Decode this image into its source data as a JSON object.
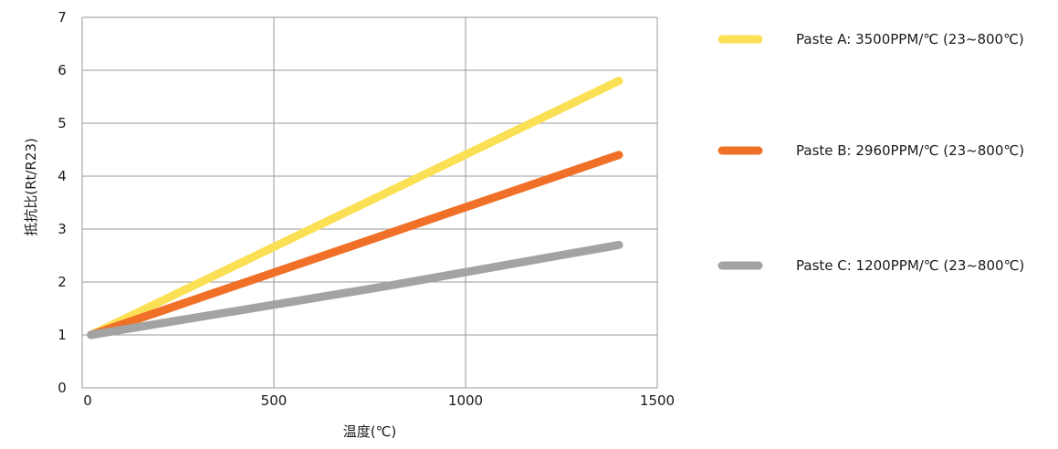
{
  "chart_data": {
    "type": "line",
    "xlabel": "温度(℃)",
    "ylabel": "抵抗比(Rt/R23)",
    "xlim": [
      0,
      1500
    ],
    "ylim": [
      0,
      7
    ],
    "x_ticks": [
      0,
      500,
      1000,
      1500
    ],
    "y_ticks": [
      0,
      1,
      2,
      3,
      4,
      5,
      6,
      7
    ],
    "grid": true,
    "legend_position": "right",
    "series": [
      {
        "name": "Paste A: 3500PPM/℃ (23~800℃)",
        "color": "#FBE055",
        "x": [
          23,
          1400
        ],
        "y": [
          1.0,
          5.8
        ]
      },
      {
        "name": "Paste B: 2960PPM/℃ (23~800℃)",
        "color": "#F07028",
        "x": [
          23,
          1400
        ],
        "y": [
          1.0,
          4.4
        ]
      },
      {
        "name": "Paste C: 1200PPM/℃ (23~800℃)",
        "color": "#A3A3A3",
        "x": [
          23,
          800,
          1400
        ],
        "y": [
          1.0,
          1.93,
          2.7
        ]
      }
    ]
  }
}
